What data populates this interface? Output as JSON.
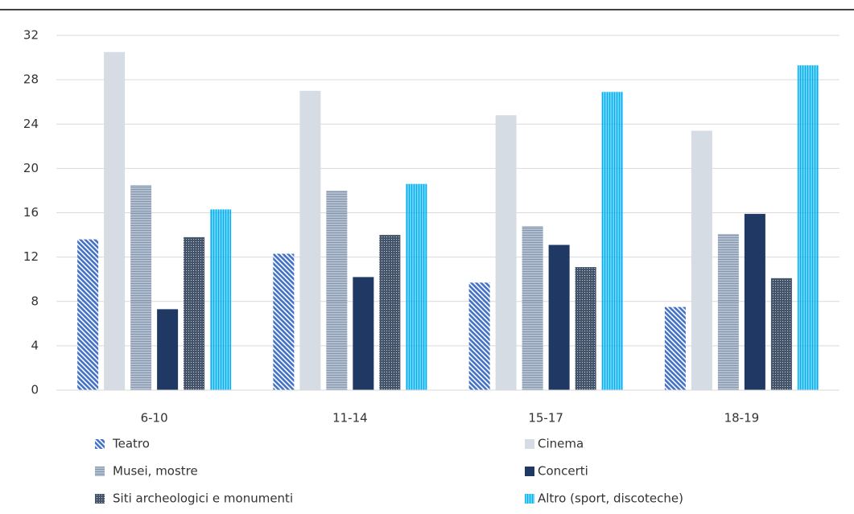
{
  "chart_data": {
    "type": "bar",
    "categories": [
      "6-10",
      "11-14",
      "15-17",
      "18-19"
    ],
    "series": [
      {
        "name": "Teatro",
        "color": "#4472c4",
        "pattern": "diagonal",
        "values": [
          13.6,
          12.3,
          9.7,
          7.5
        ]
      },
      {
        "name": "Cinema",
        "color": "#d6dce4",
        "pattern": "solid",
        "values": [
          30.5,
          27.0,
          24.8,
          23.4
        ]
      },
      {
        "name": "Musei, mostre",
        "color": "#8497b0",
        "pattern": "horizontal",
        "values": [
          18.5,
          18.0,
          14.8,
          14.1
        ]
      },
      {
        "name": "Concerti",
        "color": "#203864",
        "pattern": "solid",
        "values": [
          7.3,
          10.2,
          13.1,
          15.9
        ]
      },
      {
        "name": "Siti archeologici e monumenti",
        "color": "#44546a",
        "pattern": "grid",
        "values": [
          13.8,
          14.0,
          11.1,
          10.1
        ]
      },
      {
        "name": "Altro (sport, discoteche)",
        "color": "#00b0f0",
        "pattern": "vertical",
        "values": [
          16.3,
          18.6,
          26.9,
          29.3
        ]
      }
    ],
    "ylim": [
      0,
      32
    ],
    "yticks": [
      0,
      4,
      8,
      12,
      16,
      20,
      24,
      28,
      32
    ],
    "grid": true,
    "legend": "bottom"
  }
}
